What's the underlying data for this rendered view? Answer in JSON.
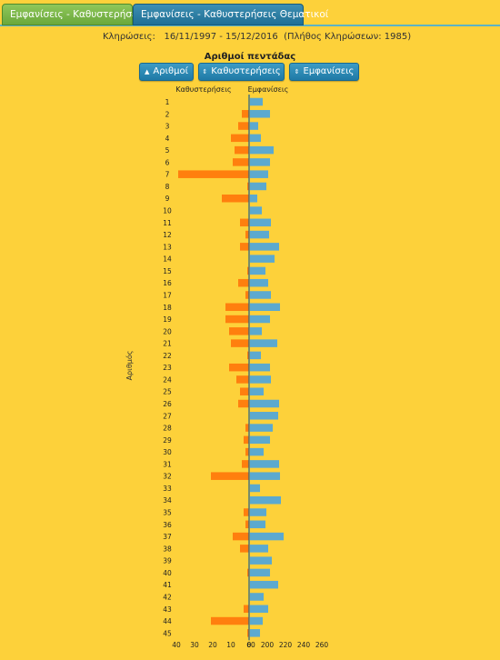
{
  "tabs": [
    {
      "label": "Εμφανίσεις - Καθυστερήσεις"
    },
    {
      "label": "Εμφανίσεις - Καθυστερήσεις Θεματικοί"
    }
  ],
  "header": {
    "draws_label": "Κληρώσεις:",
    "draws_range": "16/11/1997 - 15/12/2016",
    "draws_count": "(Πλήθος Κληρώσεων: 1985)"
  },
  "controls": {
    "title": "Αριθμοί πεντάδας",
    "sort_numbers": "Αριθμοί",
    "sort_delays": "Καθυστερήσεις",
    "sort_appearances": "Εμφανίσεις"
  },
  "colors": {
    "delays": "#ff7f0e",
    "appearances": "#5ca9cf",
    "background": "#fdd13a"
  },
  "chart_data": {
    "type": "bar",
    "orientation": "horizontal-butterfly",
    "ylabel": "Αριθμός",
    "left_label": "Καθυστερήσεις",
    "right_label": "Εμφανίσεις",
    "categories": [
      "1",
      "2",
      "3",
      "4",
      "5",
      "6",
      "7",
      "8",
      "9",
      "10",
      "11",
      "12",
      "13",
      "14",
      "15",
      "16",
      "17",
      "18",
      "19",
      "20",
      "21",
      "22",
      "23",
      "24",
      "25",
      "26",
      "27",
      "28",
      "29",
      "30",
      "31",
      "32",
      "33",
      "34",
      "35",
      "36",
      "37",
      "38",
      "39",
      "40",
      "41",
      "42",
      "43",
      "44",
      "45"
    ],
    "x_ticks_left": [
      "40",
      "30",
      "20",
      "10",
      "0"
    ],
    "x_ticks_right": [
      "60",
      "200",
      "220",
      "240",
      "260"
    ],
    "left_axis_range": [
      0,
      40
    ],
    "right_axis_range": [
      180,
      260
    ],
    "series": [
      {
        "name": "Καθυστερήσεις",
        "values": [
          0,
          4,
          6,
          10,
          8,
          9,
          39,
          1,
          15,
          0,
          5,
          2,
          5,
          0,
          1,
          6,
          2,
          13,
          13,
          11,
          10,
          1,
          11,
          7,
          5,
          6,
          0,
          2,
          3,
          2,
          4,
          21,
          0,
          0,
          3,
          2,
          9,
          5,
          0,
          1,
          0,
          0,
          3,
          21,
          1
        ]
      },
      {
        "name": "Εμφανίσεις",
        "values": [
          194,
          202,
          189,
          192,
          206,
          202,
          200,
          198,
          188,
          193,
          203,
          201,
          212,
          207,
          197,
          200,
          203,
          213,
          202,
          193,
          210,
          192,
          202,
          203,
          195,
          212,
          211,
          205,
          202,
          195,
          212,
          213,
          191,
          214,
          198,
          197,
          217,
          200,
          204,
          202,
          211,
          195,
          200,
          194,
          191
        ]
      }
    ]
  }
}
